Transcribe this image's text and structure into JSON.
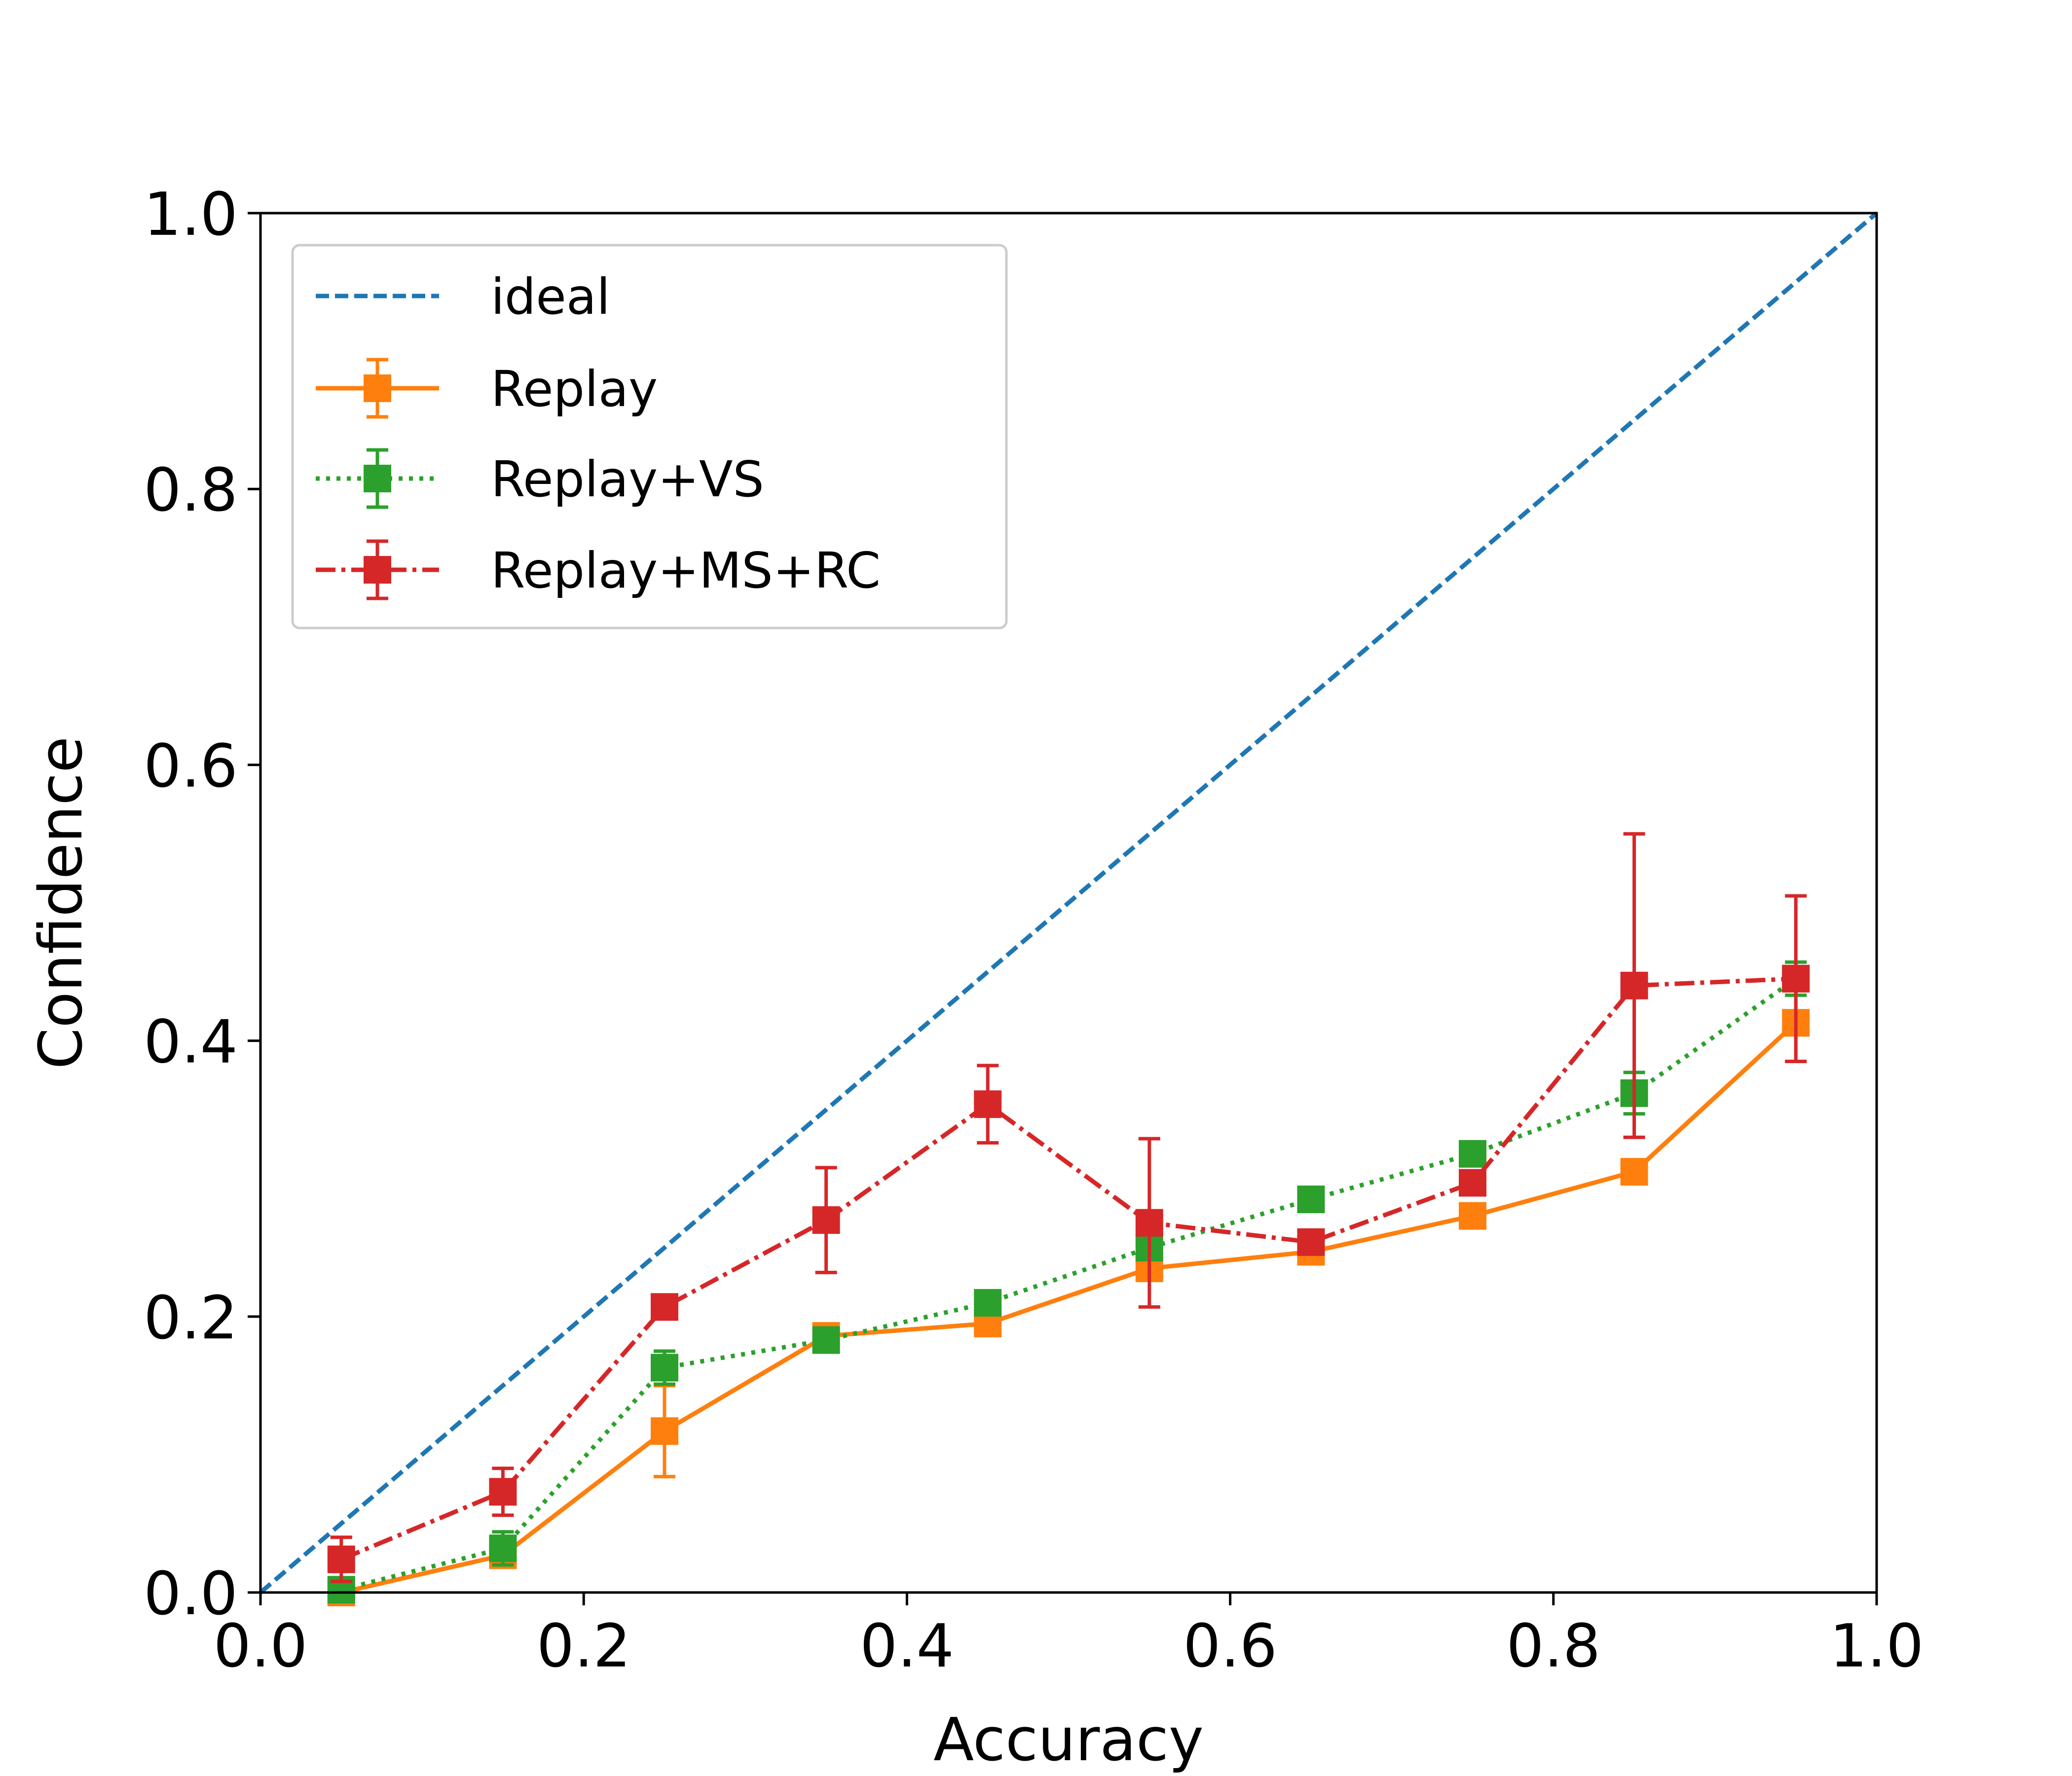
{
  "chart_data": {
    "type": "line",
    "title": "",
    "xlabel": "Accuracy",
    "ylabel": "Confidence",
    "xlim": [
      0.0,
      1.0
    ],
    "ylim": [
      0.0,
      1.0
    ],
    "xticks": [
      "0.0",
      "0.2",
      "0.4",
      "0.6",
      "0.8",
      "1.0"
    ],
    "yticks": [
      "0.0",
      "0.2",
      "0.4",
      "0.6",
      "0.8",
      "1.0"
    ],
    "xtick_values": [
      0.0,
      0.2,
      0.4,
      0.6,
      0.8,
      1.0
    ],
    "ytick_values": [
      0.0,
      0.2,
      0.4,
      0.6,
      0.8,
      1.0
    ],
    "grid": false,
    "legend_position": "upper-left",
    "x": [
      0.05,
      0.15,
      0.25,
      0.35,
      0.45,
      0.55,
      0.65,
      0.75,
      0.85,
      0.95
    ],
    "ideal": {
      "name": "ideal",
      "color": "#1f77b4",
      "style": "dashed",
      "x": [
        0.0,
        1.0
      ],
      "y": [
        0.0,
        1.0
      ]
    },
    "series": [
      {
        "name": "Replay",
        "color": "#ff7f0e",
        "style": "solid",
        "values": [
          0.0,
          0.027,
          0.117,
          0.186,
          0.195,
          0.235,
          0.247,
          0.273,
          0.305,
          0.413
        ],
        "error": [
          0.0,
          0.006,
          0.033,
          0.006,
          0.006,
          0.006,
          0.006,
          0.006,
          0.006,
          0.028
        ]
      },
      {
        "name": "Replay+VS",
        "color": "#2ca02c",
        "style": "dotted",
        "values": [
          0.002,
          0.032,
          0.163,
          0.183,
          0.21,
          0.25,
          0.285,
          0.318,
          0.362,
          0.445
        ],
        "error": [
          0.005,
          0.012,
          0.012,
          0.006,
          0.006,
          0.006,
          0.006,
          0.006,
          0.015,
          0.012
        ]
      },
      {
        "name": "Replay+MS+RC",
        "color": "#d62728",
        "style": "dashdot",
        "values": [
          0.024,
          0.073,
          0.207,
          0.27,
          0.354,
          0.268,
          0.254,
          0.297,
          0.44,
          0.445
        ],
        "error": [
          0.016,
          0.017,
          0.005,
          0.038,
          0.028,
          0.061,
          0.006,
          0.006,
          0.11,
          0.06
        ]
      }
    ]
  }
}
